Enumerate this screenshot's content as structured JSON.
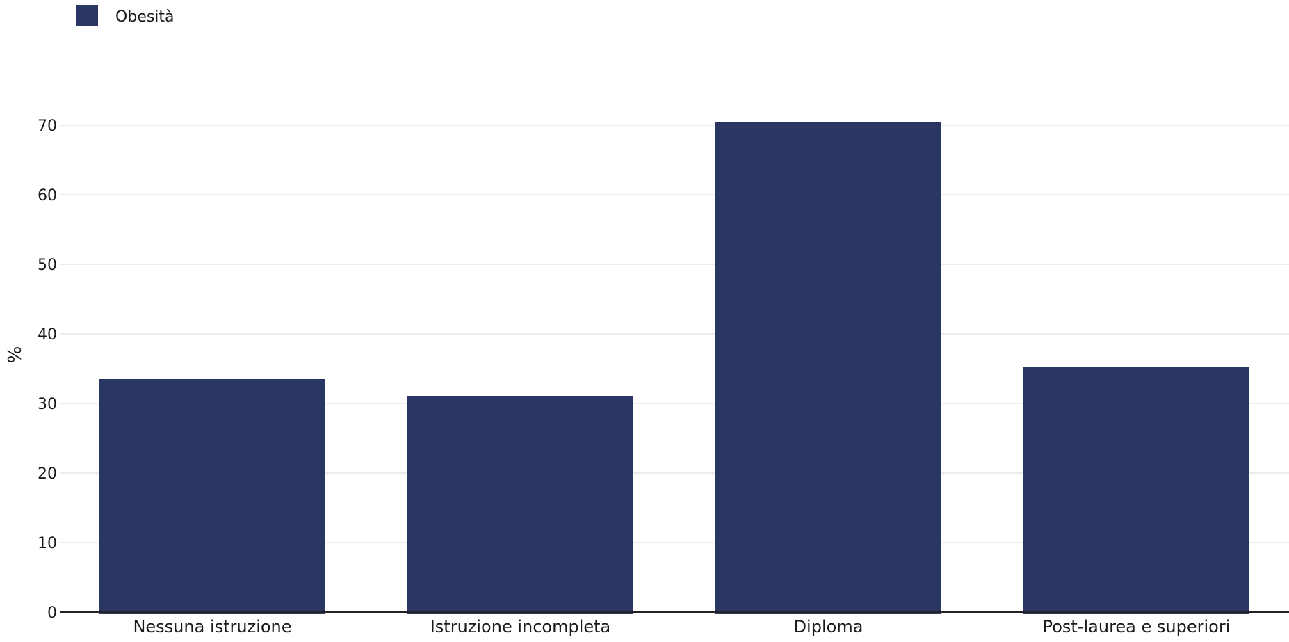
{
  "colors": {
    "bar": "#2a3764",
    "grid": "#e6e6e6",
    "axis": "#222222",
    "text": "#1a1a1a"
  },
  "chart_data": {
    "type": "bar",
    "categories": [
      "Nessuna istruzione",
      "Istruzione incompleta",
      "Diploma",
      "Post-laurea e superiori"
    ],
    "series": [
      {
        "name": "Obesità",
        "values": [
          33.5,
          31.0,
          70.5,
          35.3
        ]
      }
    ],
    "title": "",
    "xlabel": "",
    "ylabel": "%",
    "ylim": [
      0,
      70
    ],
    "yticks": [
      0,
      10,
      20,
      30,
      40,
      50,
      60,
      70
    ],
    "grid": true,
    "legend": "top-left"
  }
}
